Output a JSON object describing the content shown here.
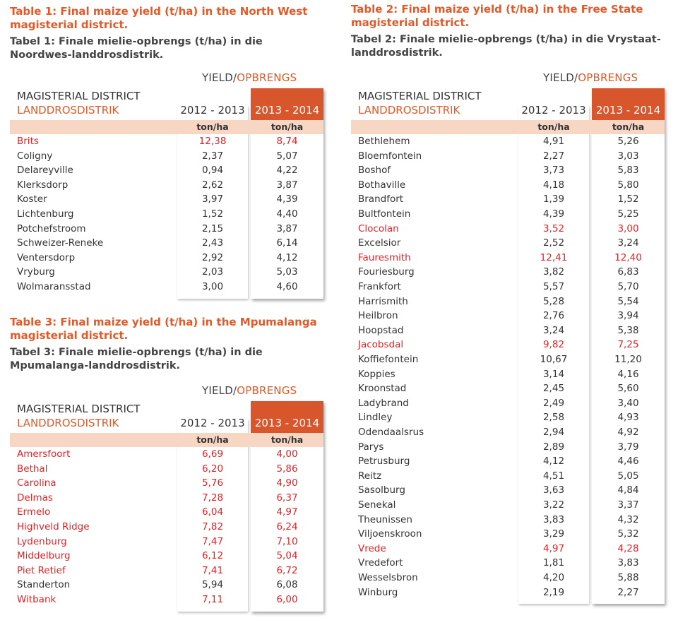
{
  "unit_label": "ton/ha",
  "tables": [
    {
      "title": "Table 1: Final maize yield (t/ha) in the North West magisterial district.",
      "subtitle": "Tabel 1: Finale mielie-opbrengs (t/ha) in die Noordwes-landdrosdistrik.",
      "yield_en": "YIELD/",
      "yield_af": "OPBRENGS",
      "district_en": "MAGISTERIAL DISTRICT",
      "district_af": "LANDDROSDISTRIK",
      "year_a": "2012 - 2013",
      "year_b": "2013 - 2014",
      "rows": [
        {
          "name": "Brits",
          "a": "12,38",
          "b": "8,74",
          "highlight": true
        },
        {
          "name": "Coligny",
          "a": "2,37",
          "b": "5,07",
          "highlight": false
        },
        {
          "name": "Delareyville",
          "a": "0,94",
          "b": "4,22",
          "highlight": false
        },
        {
          "name": "Klerksdorp",
          "a": "2,62",
          "b": "3,87",
          "highlight": false
        },
        {
          "name": "Koster",
          "a": "3,97",
          "b": "4,39",
          "highlight": false
        },
        {
          "name": "Lichtenburg",
          "a": "1,52",
          "b": "4,40",
          "highlight": false
        },
        {
          "name": "Potchefstroom",
          "a": "2,15",
          "b": "3,87",
          "highlight": false
        },
        {
          "name": "Schweizer-Reneke",
          "a": "2,43",
          "b": "6,14",
          "highlight": false
        },
        {
          "name": "Ventersdorp",
          "a": "2,92",
          "b": "4,12",
          "highlight": false
        },
        {
          "name": "Vryburg",
          "a": "2,03",
          "b": "5,03",
          "highlight": false
        },
        {
          "name": "Wolmaransstad",
          "a": "3,00",
          "b": "4,60",
          "highlight": false
        }
      ]
    },
    {
      "title": "Table 2: Final maize yield (t/ha) in the Free State magisterial district.",
      "subtitle": "Tabel 2: Finale mielie-opbrengs (t/ha) in die Vrystaat-landdrosdistrik.",
      "yield_en": "YIELD/",
      "yield_af": "OPBRENGS",
      "district_en": "MAGISTERIAL DISTRICT",
      "district_af": "LANDDROSDISTRIK",
      "year_a": "2012 - 2013",
      "year_b": "2013 - 2014",
      "rows": [
        {
          "name": "Bethlehem",
          "a": "4,91",
          "b": "5,26",
          "highlight": false
        },
        {
          "name": "Bloemfontein",
          "a": "2,27",
          "b": "3,03",
          "highlight": false
        },
        {
          "name": "Boshof",
          "a": "3,73",
          "b": "5,83",
          "highlight": false
        },
        {
          "name": "Bothaville",
          "a": "4,18",
          "b": "5,80",
          "highlight": false
        },
        {
          "name": "Brandfort",
          "a": "1,39",
          "b": "1,52",
          "highlight": false
        },
        {
          "name": "Bultfontein",
          "a": "4,39",
          "b": "5,25",
          "highlight": false
        },
        {
          "name": "Clocolan",
          "a": "3,52",
          "b": "3,00",
          "highlight": true
        },
        {
          "name": "Excelsior",
          "a": "2,52",
          "b": "3,24",
          "highlight": false
        },
        {
          "name": "Fauresmith",
          "a": "12,41",
          "b": "12,40",
          "highlight": true
        },
        {
          "name": "Fouriesburg",
          "a": "3,82",
          "b": "6,83",
          "highlight": false
        },
        {
          "name": "Frankfort",
          "a": "5,57",
          "b": "5,70",
          "highlight": false
        },
        {
          "name": "Harrismith",
          "a": "5,28",
          "b": "5,54",
          "highlight": false
        },
        {
          "name": "Heilbron",
          "a": "2,76",
          "b": "3,94",
          "highlight": false
        },
        {
          "name": "Hoopstad",
          "a": "3,24",
          "b": "5,38",
          "highlight": false
        },
        {
          "name": "Jacobsdal",
          "a": "9,82",
          "b": "7,25",
          "highlight": true
        },
        {
          "name": "Koffiefontein",
          "a": "10,67",
          "b": "11,20",
          "highlight": false
        },
        {
          "name": "Koppies",
          "a": "3,14",
          "b": "4,16",
          "highlight": false
        },
        {
          "name": "Kroonstad",
          "a": "2,45",
          "b": "5,60",
          "highlight": false
        },
        {
          "name": "Ladybrand",
          "a": "2,49",
          "b": "3,40",
          "highlight": false
        },
        {
          "name": "Lindley",
          "a": "2,58",
          "b": "4,93",
          "highlight": false
        },
        {
          "name": "Odendaalsrus",
          "a": "2,94",
          "b": "4,92",
          "highlight": false
        },
        {
          "name": "Parys",
          "a": "2,89",
          "b": "3,79",
          "highlight": false
        },
        {
          "name": "Petrusburg",
          "a": "4,12",
          "b": "4,46",
          "highlight": false
        },
        {
          "name": "Reitz",
          "a": "4,51",
          "b": "5,05",
          "highlight": false
        },
        {
          "name": "Sasolburg",
          "a": "3,63",
          "b": "4,84",
          "highlight": false
        },
        {
          "name": "Senekal",
          "a": "3,22",
          "b": "3,37",
          "highlight": false
        },
        {
          "name": "Theunissen",
          "a": "3,83",
          "b": "4,32",
          "highlight": false
        },
        {
          "name": "Viljoenskroon",
          "a": "3,29",
          "b": "5,32",
          "highlight": false
        },
        {
          "name": "Vrede",
          "a": "4,97",
          "b": "4,28",
          "highlight": true
        },
        {
          "name": "Vredefort",
          "a": "1,81",
          "b": "3,83",
          "highlight": false
        },
        {
          "name": "Wesselsbron",
          "a": "4,20",
          "b": "5,88",
          "highlight": false
        },
        {
          "name": "Winburg",
          "a": "2,19",
          "b": "2,27",
          "highlight": false
        }
      ]
    },
    {
      "title": "Table 3: Final maize yield (t/ha) in the Mpumalanga magisterial district.",
      "subtitle": "Tabel 3: Finale mielie-opbrengs (t/ha) in die Mpumalanga-landdrosdistrik.",
      "yield_en": "YIELD/",
      "yield_af": "OPBRENGS",
      "district_en": "MAGISTERIAL DISTRICT",
      "district_af": "LANDDROSDISTRIK",
      "year_a": "2012 - 2013",
      "year_b": "2013 - 2014",
      "rows": [
        {
          "name": "Amersfoort",
          "a": "6,69",
          "b": "4,00",
          "highlight": true
        },
        {
          "name": "Bethal",
          "a": "6,20",
          "b": "5,86",
          "highlight": true
        },
        {
          "name": "Carolina",
          "a": "5,76",
          "b": "4,90",
          "highlight": true
        },
        {
          "name": "Delmas",
          "a": "7,28",
          "b": "6,37",
          "highlight": true
        },
        {
          "name": "Ermelo",
          "a": "6,04",
          "b": "4,97",
          "highlight": true
        },
        {
          "name": "Highveld Ridge",
          "a": "7,82",
          "b": "6,24",
          "highlight": true
        },
        {
          "name": "Lydenburg",
          "a": "7,47",
          "b": "7,10",
          "highlight": true
        },
        {
          "name": "Middelburg",
          "a": "6,12",
          "b": "5,04",
          "highlight": true
        },
        {
          "name": "Piet Retief",
          "a": "7,41",
          "b": "6,72",
          "highlight": true
        },
        {
          "name": "Standerton",
          "a": "5,94",
          "b": "6,08",
          "highlight": false
        },
        {
          "name": "Witbank",
          "a": "7,11",
          "b": "6,00",
          "highlight": true
        }
      ]
    }
  ]
}
